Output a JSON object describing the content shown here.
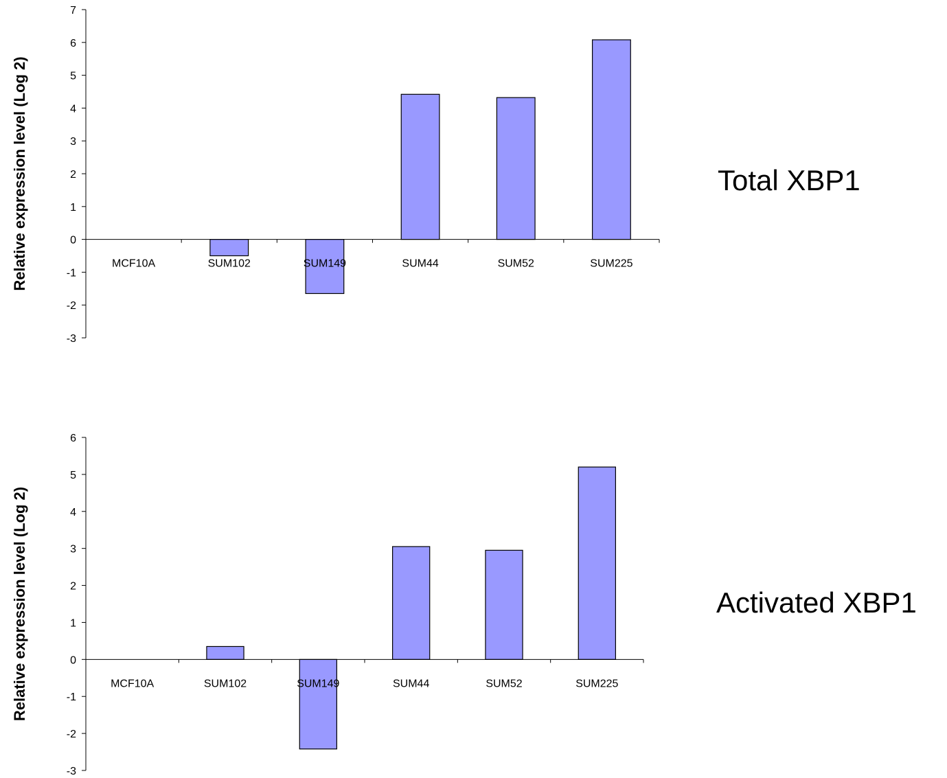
{
  "chart_data": [
    {
      "type": "bar",
      "panel_label": "Total XBP1",
      "ylabel": "Relative expression level (Log 2)",
      "categories": [
        "MCF10A",
        "SUM102",
        "SUM149",
        "SUM44",
        "SUM52",
        "SUM225"
      ],
      "values": [
        0,
        -0.5,
        -1.65,
        4.42,
        4.32,
        6.08
      ],
      "ylim": [
        -3,
        7
      ],
      "yticks": [
        -3,
        -2,
        -1,
        0,
        1,
        2,
        3,
        4,
        5,
        6,
        7
      ],
      "bar_color": "#9999ff",
      "grid": false,
      "legend": "none"
    },
    {
      "type": "bar",
      "panel_label": "Activated XBP1",
      "ylabel": "Relative expression level (Log 2)",
      "categories": [
        "MCF10A",
        "SUM102",
        "SUM149",
        "SUM44",
        "SUM52",
        "SUM225"
      ],
      "values": [
        0,
        0.35,
        -2.42,
        3.05,
        2.95,
        5.2
      ],
      "ylim": [
        -3,
        6
      ],
      "yticks": [
        -3,
        -2,
        -1,
        0,
        1,
        2,
        3,
        4,
        5,
        6
      ],
      "bar_color": "#9999ff",
      "grid": false,
      "legend": "none"
    }
  ]
}
